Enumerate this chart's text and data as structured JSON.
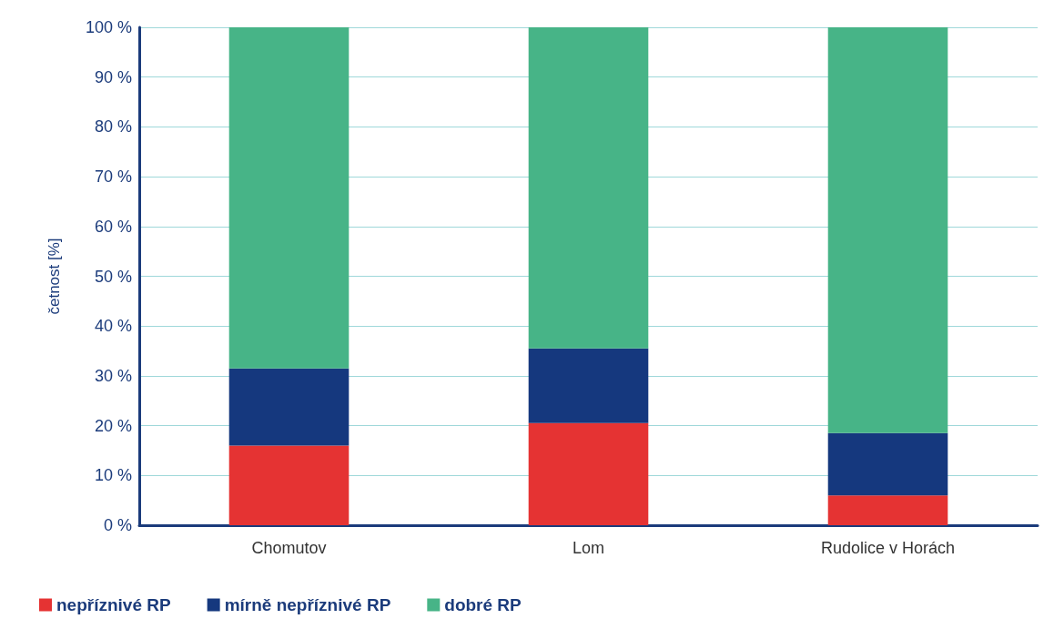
{
  "chart_data": {
    "type": "bar",
    "stacked": true,
    "ylabel": "četnost [%]",
    "categories": [
      "Chomutov",
      "Lom",
      "Rudolice v Horách"
    ],
    "series": [
      {
        "name": "nepříznivé RP",
        "color": "#e53333",
        "values": [
          16,
          20.5,
          6
        ]
      },
      {
        "name": "mírně nepříznivé RP",
        "color": "#15387e",
        "values": [
          15.5,
          15,
          12.5
        ]
      },
      {
        "name": "dobré RP",
        "color": "#47b487",
        "values": [
          68.5,
          64.5,
          81.5
        ]
      }
    ],
    "ylim": [
      0,
      100
    ],
    "yticks": [
      {
        "value": 0,
        "label": "0 %"
      },
      {
        "value": 10,
        "label": "10 %"
      },
      {
        "value": 20,
        "label": "20 %"
      },
      {
        "value": 30,
        "label": "30 %"
      },
      {
        "value": 40,
        "label": "40 %"
      },
      {
        "value": 50,
        "label": "50 %"
      },
      {
        "value": 60,
        "label": "60 %"
      },
      {
        "value": 70,
        "label": "70 %"
      },
      {
        "value": 80,
        "label": "80 %"
      },
      {
        "value": 90,
        "label": "90 %"
      },
      {
        "value": 100,
        "label": "100 %"
      }
    ],
    "grid": "y",
    "legend": "bottom left"
  }
}
